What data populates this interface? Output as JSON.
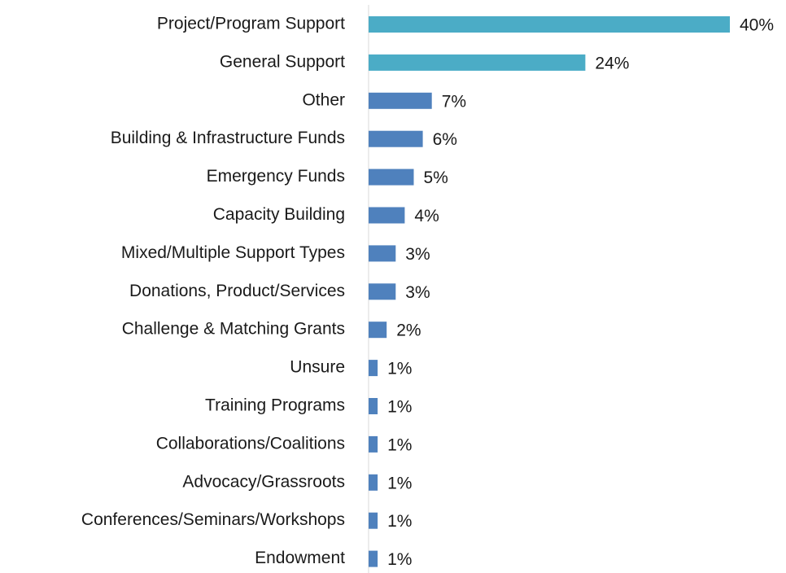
{
  "chart_data": {
    "type": "hbar",
    "categories": [
      "Project/Program Support",
      "General Support",
      "Other",
      "Building & Infrastructure Funds",
      "Emergency Funds",
      "Capacity Building",
      "Mixed/Multiple Support Types",
      "Donations, Product/Services",
      "Challenge & Matching Grants",
      "Unsure",
      "Training Programs",
      "Collaborations/Coalitions",
      "Advocacy/Grassroots",
      "Conferences/Seminars/Workshops",
      "Endowment"
    ],
    "values": [
      40,
      24,
      7,
      6,
      5,
      4,
      3,
      3,
      2,
      1,
      1,
      1,
      1,
      1,
      1
    ],
    "value_labels": [
      "40%",
      "24%",
      "7%",
      "6%",
      "5%",
      "4%",
      "3%",
      "3%",
      "2%",
      "1%",
      "1%",
      "1%",
      "1%",
      "1%",
      "1%"
    ],
    "colors": [
      "#4bacc6",
      "#4bacc6",
      "#4f81bd",
      "#4f81bd",
      "#4f81bd",
      "#4f81bd",
      "#4f81bd",
      "#4f81bd",
      "#4f81bd",
      "#4f81bd",
      "#4f81bd",
      "#4f81bd",
      "#4f81bd",
      "#4f81bd",
      "#4f81bd"
    ]
  }
}
